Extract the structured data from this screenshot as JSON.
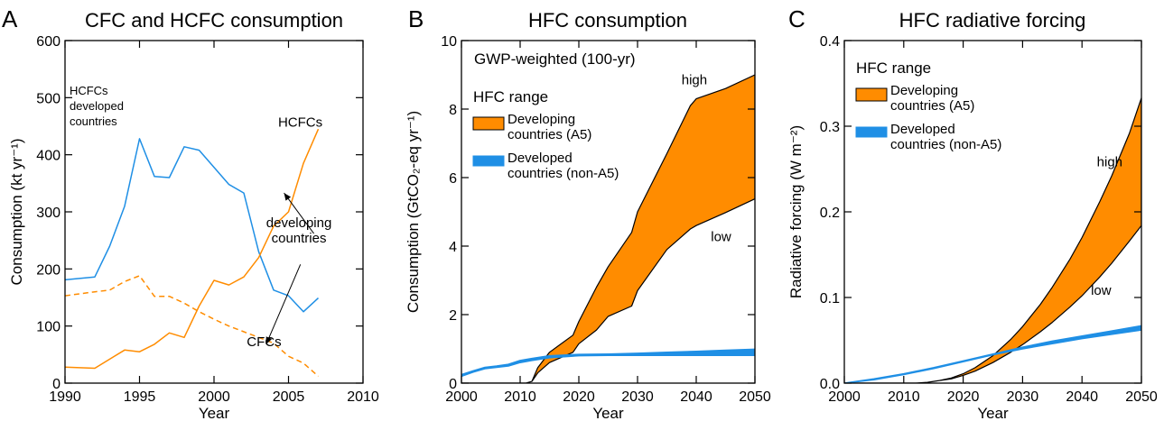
{
  "colors": {
    "orange": "#FF8C00",
    "blue": "#1f8fe5",
    "black": "#000000"
  },
  "chart_data": [
    {
      "panel_letter": "A",
      "type": "line",
      "title": "CFC and HCFC consumption",
      "xlabel": "Year",
      "ylabel": "Consumption (kt yr⁻¹)",
      "xlim": [
        1990,
        2010
      ],
      "ylim": [
        0,
        600
      ],
      "xticks": [
        1990,
        1995,
        2000,
        2005,
        2010
      ],
      "yticks": [
        0,
        100,
        200,
        300,
        400,
        500,
        600
      ],
      "series": [
        {
          "label": "HCFCs developed countries",
          "color": "#1f8fe5",
          "style": "solid",
          "x": [
            1990,
            1992,
            1993,
            1994,
            1995,
            1996,
            1997,
            1998,
            1999,
            2000,
            2001,
            2002,
            2003,
            2004,
            2005,
            2006,
            2007
          ],
          "y": [
            181,
            186,
            240,
            310,
            428,
            362,
            360,
            414,
            408,
            378,
            348,
            333,
            230,
            163,
            153,
            125,
            149
          ]
        },
        {
          "label": "HCFCs",
          "color": "#FF8C00",
          "style": "solid",
          "x": [
            1990,
            1992,
            1993,
            1994,
            1995,
            1996,
            1997,
            1998,
            1999,
            2000,
            2001,
            2002,
            2003,
            2004,
            2005,
            2006,
            2007
          ],
          "y": [
            28,
            26,
            42,
            58,
            55,
            68,
            88,
            80,
            135,
            180,
            172,
            186,
            220,
            275,
            300,
            385,
            445
          ]
        },
        {
          "label": "CFCs",
          "color": "#FF8C00",
          "style": "dashed",
          "x": [
            1990,
            1992,
            1993,
            1994,
            1995,
            1996,
            1997,
            1998,
            1999,
            2000,
            2001,
            2002,
            2003,
            2004,
            2005,
            2006,
            2007
          ],
          "y": [
            153,
            160,
            163,
            178,
            188,
            152,
            152,
            140,
            125,
            112,
            100,
            90,
            80,
            70,
            47,
            35,
            12
          ]
        }
      ],
      "annotations": [
        {
          "lines": [
            "HCFCs",
            "developed",
            "countries"
          ],
          "x": 1990.3,
          "y": 505
        },
        {
          "lines": [
            "HCFCs"
          ],
          "x": 2004.3,
          "y": 449
        },
        {
          "lines": [
            "developing",
            "countries"
          ],
          "x": 2005.7,
          "y": 273
        },
        {
          "lines": [
            "CFCs"
          ],
          "x": 2002.2,
          "y": 65
        }
      ],
      "arrows": [
        {
          "from": [
            2006.7,
            262
          ],
          "to": [
            2004.7,
            333
          ]
        },
        {
          "from": [
            2005.8,
            208
          ],
          "to": [
            2003.5,
            68
          ]
        }
      ]
    },
    {
      "panel_letter": "B",
      "type": "area",
      "title": "HFC consumption",
      "subtitle": "GWP-weighted (100-yr)",
      "xlabel": "Year",
      "ylabel": "Consumption (GtCO₂-eq yr⁻¹)",
      "xlim": [
        2000,
        2050
      ],
      "ylim": [
        0,
        10
      ],
      "xticks": [
        2000,
        2010,
        2020,
        2030,
        2040,
        2050
      ],
      "yticks": [
        0,
        2,
        4,
        6,
        8,
        10
      ],
      "legend_title": "HFC range",
      "legend": [
        {
          "lines": [
            "Developing",
            "countries (A5)"
          ],
          "color": "#FF8C00"
        },
        {
          "lines": [
            "Developed",
            "countries (non-A5)"
          ],
          "color": "#1f8fe5"
        }
      ],
      "series": [
        {
          "name": "Developing countries (A5)",
          "color": "#FF8C00",
          "x": [
            2000,
            2005,
            2010,
            2011,
            2012,
            2013,
            2015,
            2019,
            2020,
            2023,
            2025,
            2029,
            2030,
            2035,
            2039,
            2040,
            2045,
            2050
          ],
          "high": [
            0,
            0,
            0,
            0,
            0.05,
            0.45,
            0.9,
            1.4,
            1.8,
            2.8,
            3.4,
            4.4,
            5.0,
            6.7,
            8.1,
            8.3,
            8.6,
            9.0
          ],
          "low": [
            0,
            0,
            0,
            0,
            0.05,
            0.3,
            0.6,
            0.9,
            1.15,
            1.55,
            1.95,
            2.25,
            2.7,
            3.9,
            4.5,
            4.6,
            4.98,
            5.38
          ]
        },
        {
          "name": "Developed countries (non-A5)",
          "color": "#1f8fe5",
          "x": [
            2000,
            2002,
            2004,
            2006,
            2008,
            2010,
            2012,
            2015,
            2020,
            2025,
            2030,
            2035,
            2040,
            2045,
            2050
          ],
          "high": [
            0.25,
            0.36,
            0.46,
            0.5,
            0.55,
            0.66,
            0.72,
            0.8,
            0.84,
            0.85,
            0.87,
            0.9,
            0.93,
            0.96,
            0.99
          ],
          "low": [
            0.2,
            0.32,
            0.42,
            0.46,
            0.5,
            0.6,
            0.66,
            0.74,
            0.8,
            0.81,
            0.81,
            0.81,
            0.81,
            0.81,
            0.81
          ]
        }
      ],
      "annotations": [
        {
          "lines": [
            "high"
          ],
          "x": 2037.5,
          "y": 8.72
        },
        {
          "lines": [
            "low"
          ],
          "x": 2042.5,
          "y": 4.15
        }
      ]
    },
    {
      "panel_letter": "C",
      "type": "area",
      "title": "HFC radiative forcing",
      "xlabel": "Year",
      "ylabel": "Radiative forcing (W m⁻²)",
      "xlim": [
        2000,
        2050
      ],
      "ylim": [
        0,
        0.4
      ],
      "xticks": [
        2000,
        2010,
        2020,
        2030,
        2040,
        2050
      ],
      "yticks": [
        0.0,
        0.1,
        0.2,
        0.3,
        0.4
      ],
      "legend_title": "HFC range",
      "legend": [
        {
          "lines": [
            "Developing",
            "countries (A5)"
          ],
          "color": "#FF8C00"
        },
        {
          "lines": [
            "Developed",
            "countries (non-A5)"
          ],
          "color": "#1f8fe5"
        }
      ],
      "series": [
        {
          "name": "Developing countries (A5)",
          "color": "#FF8C00",
          "x": [
            2000,
            2010,
            2012,
            2014,
            2016,
            2018,
            2020,
            2022,
            2025,
            2028,
            2030,
            2033,
            2035,
            2038,
            2040,
            2043,
            2045,
            2048,
            2050
          ],
          "high": [
            0,
            0,
            0,
            0.001,
            0.003,
            0.006,
            0.011,
            0.018,
            0.032,
            0.051,
            0.066,
            0.092,
            0.112,
            0.145,
            0.17,
            0.212,
            0.242,
            0.292,
            0.333
          ],
          "low": [
            0,
            0,
            0,
            0.001,
            0.003,
            0.005,
            0.009,
            0.014,
            0.024,
            0.036,
            0.045,
            0.06,
            0.071,
            0.089,
            0.102,
            0.124,
            0.14,
            0.166,
            0.184
          ]
        },
        {
          "name": "Developed countries (non-A5)",
          "color": "#1f8fe5",
          "x": [
            2000,
            2005,
            2010,
            2015,
            2020,
            2025,
            2030,
            2035,
            2040,
            2045,
            2050
          ],
          "high": [
            0.0,
            0.005,
            0.011,
            0.018,
            0.026,
            0.034,
            0.042,
            0.049,
            0.055,
            0.061,
            0.067
          ],
          "low": [
            0.0,
            0.004,
            0.01,
            0.017,
            0.025,
            0.033,
            0.04,
            0.046,
            0.052,
            0.057,
            0.062
          ]
        }
      ],
      "annotations": [
        {
          "lines": [
            "high"
          ],
          "x": 2042.5,
          "y": 0.253
        },
        {
          "lines": [
            "low"
          ],
          "x": 2041.5,
          "y": 0.103
        }
      ]
    }
  ]
}
